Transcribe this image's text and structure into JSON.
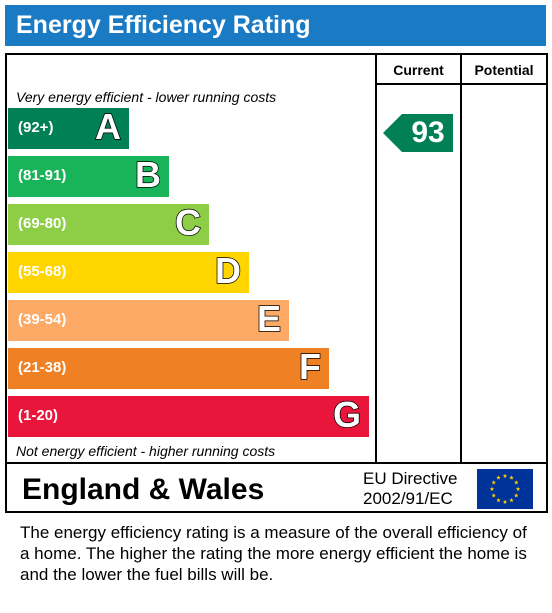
{
  "title": "Energy Efficiency Rating",
  "columns": {
    "current": "Current",
    "potential": "Potential"
  },
  "notes": {
    "top": "Very energy efficient - lower running costs",
    "bottom": "Not energy efficient - higher running costs"
  },
  "chart_data": {
    "type": "bar",
    "categories": [
      "A",
      "B",
      "C",
      "D",
      "E",
      "F",
      "G"
    ],
    "ranges": [
      "(92+)",
      "(81-91)",
      "(69-80)",
      "(55-68)",
      "(39-54)",
      "(21-38)",
      "(1-20)"
    ],
    "colors": [
      "#008054",
      "#19b459",
      "#8dce46",
      "#ffd500",
      "#fcaa65",
      "#ef8023",
      "#e9153b"
    ],
    "current": {
      "value": 93,
      "band": "A"
    },
    "potential": null
  },
  "footer": {
    "region": "England & Wales",
    "directive_line1": "EU Directive",
    "directive_line2": "2002/91/EC"
  },
  "description": "The energy efficiency rating is a measure of the overall efficiency of a home.  The higher the rating the more energy efficient the home is and the lower the fuel bills will be."
}
